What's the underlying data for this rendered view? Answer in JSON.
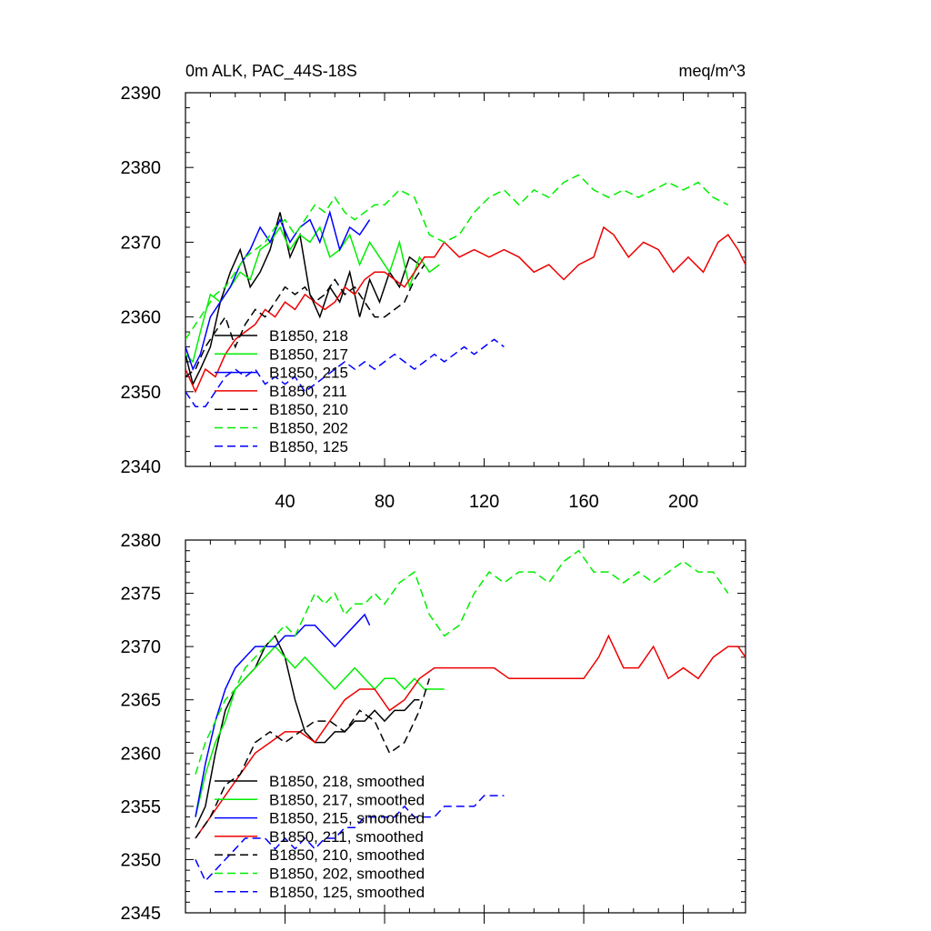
{
  "chart_data": [
    {
      "type": "line",
      "title": "0m ALK, PAC_44S-18S",
      "units": "meq/m^3",
      "xlim": [
        0,
        225
      ],
      "ylim": [
        2340,
        2390
      ],
      "xticks": [
        40,
        80,
        120,
        160,
        200
      ],
      "yticks": [
        2340,
        2350,
        2360,
        2370,
        2380,
        2390
      ],
      "grid": false,
      "legend_position": "lower-left",
      "series": [
        {
          "name": "B1850, 218",
          "color": "#000000",
          "dash": "solid",
          "x": [
            0,
            3,
            6,
            10,
            14,
            18,
            22,
            26,
            30,
            34,
            38,
            42,
            46,
            50,
            54,
            58,
            62,
            66,
            70,
            74,
            78,
            82,
            86,
            90,
            94
          ],
          "y": [
            2355,
            2351,
            2353,
            2356,
            2362,
            2366,
            2369,
            2364,
            2366,
            2369,
            2374,
            2368,
            2371,
            2363,
            2360,
            2364,
            2362,
            2366,
            2360,
            2365,
            2362,
            2366,
            2364,
            2368,
            2367
          ]
        },
        {
          "name": "B1850, 217",
          "color": "#00ee00",
          "dash": "solid",
          "x": [
            0,
            3,
            6,
            10,
            14,
            18,
            22,
            26,
            30,
            34,
            38,
            42,
            46,
            50,
            54,
            58,
            62,
            66,
            70,
            74,
            78,
            82,
            86,
            90,
            94,
            98,
            102
          ],
          "y": [
            2355,
            2354,
            2358,
            2363,
            2362,
            2364,
            2366,
            2365,
            2369,
            2370,
            2372,
            2369,
            2371,
            2370,
            2372,
            2368,
            2369,
            2371,
            2367,
            2370,
            2368,
            2366,
            2370,
            2364,
            2368,
            2366,
            2367
          ]
        },
        {
          "name": "B1850, 215",
          "color": "#0000ff",
          "dash": "solid",
          "x": [
            0,
            3,
            6,
            10,
            14,
            18,
            22,
            26,
            30,
            34,
            38,
            42,
            46,
            50,
            54,
            58,
            62,
            66,
            70,
            74
          ],
          "y": [
            2356,
            2353,
            2355,
            2360,
            2362,
            2364,
            2367,
            2369,
            2372,
            2370,
            2373,
            2370,
            2372,
            2373,
            2370,
            2374,
            2369,
            2372,
            2371,
            2373
          ]
        },
        {
          "name": "B1850, 211",
          "color": "#ee0000",
          "dash": "solid",
          "x": [
            0,
            4,
            8,
            12,
            16,
            20,
            24,
            28,
            32,
            36,
            40,
            44,
            48,
            52,
            56,
            60,
            64,
            68,
            72,
            76,
            80,
            84,
            88,
            92,
            96,
            100,
            104,
            110,
            116,
            122,
            128,
            134,
            140,
            146,
            152,
            158,
            164,
            168,
            172,
            178,
            184,
            190,
            196,
            202,
            208,
            214,
            218,
            222,
            225
          ],
          "y": [
            2353,
            2350,
            2353,
            2352,
            2355,
            2357,
            2358,
            2359,
            2361,
            2360,
            2362,
            2361,
            2363,
            2362,
            2361,
            2362,
            2364,
            2363,
            2365,
            2366,
            2366,
            2365,
            2364,
            2366,
            2368,
            2368,
            2370,
            2368,
            2369,
            2368,
            2369,
            2368,
            2366,
            2367,
            2365,
            2367,
            2368,
            2372,
            2371,
            2368,
            2370,
            2369,
            2366,
            2368,
            2366,
            2370,
            2371,
            2369,
            2367
          ]
        },
        {
          "name": "B1850, 210",
          "color": "#000000",
          "dash": "dashed",
          "x": [
            0,
            4,
            8,
            12,
            16,
            20,
            24,
            28,
            32,
            36,
            40,
            44,
            48,
            52,
            56,
            60,
            64,
            68,
            72,
            76,
            80,
            84,
            88,
            92,
            96
          ],
          "y": [
            2352,
            2353,
            2356,
            2358,
            2360,
            2356,
            2359,
            2361,
            2360,
            2362,
            2364,
            2363,
            2364,
            2362,
            2363,
            2365,
            2363,
            2364,
            2362,
            2360,
            2360,
            2361,
            2362,
            2365,
            2367
          ]
        },
        {
          "name": "B1850, 202",
          "color": "#00ee00",
          "dash": "dashed",
          "x": [
            0,
            4,
            8,
            12,
            16,
            20,
            24,
            28,
            32,
            36,
            40,
            44,
            48,
            52,
            56,
            60,
            64,
            68,
            72,
            76,
            80,
            86,
            92,
            98,
            104,
            110,
            116,
            122,
            128,
            134,
            140,
            146,
            152,
            158,
            164,
            170,
            176,
            182,
            188,
            194,
            200,
            206,
            212,
            218
          ],
          "y": [
            2357,
            2359,
            2361,
            2363,
            2364,
            2366,
            2368,
            2369,
            2370,
            2372,
            2373,
            2371,
            2373,
            2375,
            2374,
            2376,
            2374,
            2373,
            2374,
            2375,
            2375,
            2377,
            2376,
            2371,
            2370,
            2371,
            2374,
            2376,
            2377,
            2375,
            2377,
            2376,
            2378,
            2379,
            2377,
            2376,
            2377,
            2376,
            2377,
            2378,
            2377,
            2378,
            2376,
            2375
          ]
        },
        {
          "name": "B1850, 125",
          "color": "#0000ff",
          "dash": "dashed",
          "x": [
            0,
            4,
            8,
            12,
            16,
            20,
            24,
            28,
            32,
            36,
            40,
            44,
            48,
            52,
            56,
            60,
            64,
            68,
            72,
            76,
            80,
            84,
            88,
            92,
            96,
            100,
            104,
            108,
            112,
            116,
            120,
            124,
            128
          ],
          "y": [
            2350,
            2348,
            2348,
            2350,
            2352,
            2353,
            2352,
            2353,
            2351,
            2352,
            2351,
            2352,
            2350,
            2351,
            2352,
            2353,
            2354,
            2353,
            2354,
            2353,
            2354,
            2355,
            2354,
            2353,
            2354,
            2355,
            2354,
            2355,
            2356,
            2355,
            2356,
            2357,
            2356
          ]
        }
      ]
    },
    {
      "type": "line",
      "title": "",
      "xlim": [
        0,
        225
      ],
      "ylim": [
        2345,
        2380
      ],
      "xticks": [
        40,
        80,
        120,
        160,
        200
      ],
      "yticks": [
        2345,
        2350,
        2355,
        2360,
        2365,
        2370,
        2375,
        2380
      ],
      "grid": false,
      "legend_position": "lower-left",
      "series": [
        {
          "name": "B1850, 218, smoothed",
          "color": "#000000",
          "dash": "solid",
          "x": [
            4,
            8,
            12,
            16,
            20,
            24,
            28,
            32,
            36,
            40,
            44,
            48,
            52,
            56,
            60,
            64,
            68,
            72,
            76,
            80,
            84,
            88,
            92,
            94
          ],
          "y": [
            2353,
            2355,
            2360,
            2364,
            2366,
            2367,
            2368,
            2370,
            2371,
            2369,
            2365,
            2362,
            2361,
            2361,
            2362,
            2362,
            2363,
            2363,
            2364,
            2363,
            2364,
            2364,
            2365,
            2365
          ]
        },
        {
          "name": "B1850, 217, smoothed",
          "color": "#00ee00",
          "dash": "solid",
          "x": [
            4,
            8,
            12,
            16,
            20,
            24,
            28,
            32,
            36,
            40,
            44,
            48,
            52,
            56,
            60,
            64,
            68,
            72,
            76,
            80,
            84,
            88,
            92,
            96,
            100,
            104
          ],
          "y": [
            2354,
            2358,
            2361,
            2363,
            2366,
            2367,
            2368,
            2369,
            2370,
            2369,
            2368,
            2369,
            2368,
            2367,
            2366,
            2367,
            2368,
            2367,
            2366,
            2367,
            2367,
            2366,
            2367,
            2366,
            2366,
            2366
          ]
        },
        {
          "name": "B1850, 215, smoothed",
          "color": "#0000ff",
          "dash": "solid",
          "x": [
            4,
            8,
            12,
            16,
            20,
            24,
            28,
            32,
            36,
            40,
            44,
            48,
            52,
            56,
            60,
            64,
            68,
            72,
            74
          ],
          "y": [
            2354,
            2359,
            2363,
            2366,
            2368,
            2369,
            2370,
            2370,
            2370,
            2371,
            2371,
            2372,
            2372,
            2371,
            2370,
            2371,
            2372,
            2373,
            2372
          ]
        },
        {
          "name": "B1850, 211, smoothed",
          "color": "#ee0000",
          "dash": "solid",
          "x": [
            4,
            10,
            16,
            22,
            28,
            34,
            40,
            46,
            52,
            58,
            64,
            70,
            76,
            82,
            88,
            94,
            100,
            106,
            112,
            118,
            124,
            130,
            136,
            142,
            148,
            154,
            160,
            166,
            170,
            176,
            182,
            188,
            194,
            200,
            206,
            212,
            218,
            222,
            225
          ],
          "y": [
            2352,
            2354,
            2356,
            2358,
            2360,
            2361,
            2362,
            2362,
            2361,
            2363,
            2365,
            2366,
            2366,
            2364,
            2365,
            2367,
            2368,
            2368,
            2368,
            2368,
            2368,
            2367,
            2367,
            2367,
            2367,
            2367,
            2367,
            2369,
            2371,
            2368,
            2368,
            2370,
            2367,
            2368,
            2367,
            2369,
            2370,
            2370,
            2369
          ]
        },
        {
          "name": "B1850, 210, smoothed",
          "color": "#000000",
          "dash": "dashed",
          "x": [
            4,
            10,
            16,
            22,
            28,
            34,
            40,
            46,
            52,
            58,
            64,
            70,
            76,
            82,
            88,
            94,
            98
          ],
          "y": [
            2352,
            2354,
            2357,
            2358,
            2361,
            2362,
            2361,
            2362,
            2363,
            2363,
            2362,
            2364,
            2363,
            2360,
            2361,
            2364,
            2367
          ]
        },
        {
          "name": "B1850, 202, smoothed",
          "color": "#00ee00",
          "dash": "dashed",
          "x": [
            4,
            8,
            12,
            16,
            20,
            24,
            28,
            32,
            36,
            40,
            44,
            48,
            52,
            56,
            60,
            64,
            68,
            72,
            76,
            80,
            86,
            92,
            98,
            104,
            110,
            116,
            122,
            128,
            134,
            140,
            146,
            152,
            158,
            164,
            170,
            176,
            182,
            188,
            194,
            200,
            206,
            212,
            218
          ],
          "y": [
            2358,
            2361,
            2363,
            2365,
            2366,
            2368,
            2369,
            2370,
            2371,
            2372,
            2371,
            2373,
            2375,
            2374,
            2375,
            2373,
            2374,
            2374,
            2375,
            2374,
            2376,
            2377,
            2373,
            2371,
            2372,
            2375,
            2377,
            2376,
            2377,
            2377,
            2376,
            2378,
            2379,
            2377,
            2377,
            2376,
            2377,
            2376,
            2377,
            2378,
            2377,
            2377,
            2375
          ]
        },
        {
          "name": "B1850, 125, smoothed",
          "color": "#0000ff",
          "dash": "dashed",
          "x": [
            4,
            8,
            12,
            16,
            20,
            24,
            28,
            32,
            36,
            40,
            44,
            48,
            52,
            56,
            60,
            64,
            68,
            72,
            76,
            80,
            84,
            88,
            92,
            96,
            100,
            104,
            108,
            112,
            116,
            120,
            124,
            128
          ],
          "y": [
            2350,
            2348,
            2349,
            2350,
            2351,
            2352,
            2352,
            2352,
            2351,
            2352,
            2351,
            2352,
            2351,
            2352,
            2352,
            2353,
            2353,
            2354,
            2354,
            2354,
            2354,
            2355,
            2354,
            2354,
            2354,
            2355,
            2355,
            2355,
            2355,
            2356,
            2356,
            2356
          ]
        }
      ]
    }
  ]
}
